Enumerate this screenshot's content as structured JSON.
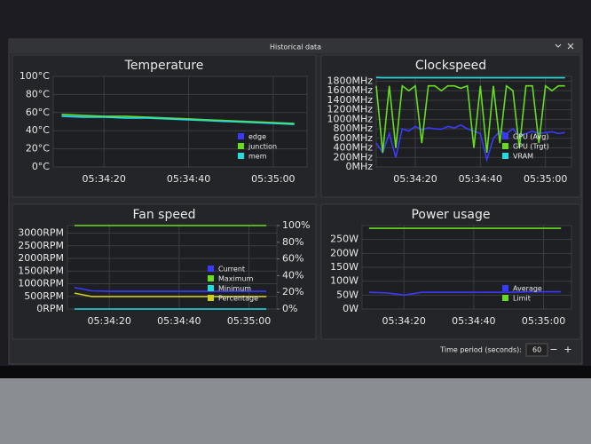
{
  "window": {
    "title": "Historical data"
  },
  "footer": {
    "label": "Time period (seconds):",
    "input": "60",
    "minus": "−",
    "plus": "+"
  },
  "chart_data": [
    {
      "type": "line",
      "title": "Temperature",
      "grid": true,
      "legend": "lower right",
      "x": [
        "05:34:10",
        "05:34:15",
        "05:34:20",
        "05:34:25",
        "05:34:30",
        "05:34:35",
        "05:34:40",
        "05:34:45",
        "05:34:50",
        "05:34:55",
        "05:35:00",
        "05:35:05"
      ],
      "xlim": [
        "05:34:08",
        "05:35:08"
      ],
      "xticks": [
        "05:34:20",
        "05:34:40",
        "05:35:00"
      ],
      "ylim": [
        0,
        100
      ],
      "yticks": [
        {
          "value": 0,
          "label": "0°C"
        },
        {
          "value": 20,
          "label": "20°C"
        },
        {
          "value": 40,
          "label": "40°C"
        },
        {
          "value": 60,
          "label": "60°C"
        },
        {
          "value": 80,
          "label": "80°C"
        },
        {
          "value": 100,
          "label": "100°C"
        }
      ],
      "series": [
        {
          "name": "edge",
          "color": "#3a3aff",
          "values": [
            57,
            56,
            56,
            55,
            55,
            54,
            53,
            52,
            51,
            50,
            49,
            48
          ]
        },
        {
          "name": "junction",
          "color": "#66dd22",
          "values": [
            58,
            57,
            56,
            56,
            55,
            54,
            53,
            52,
            51,
            50,
            49,
            48
          ]
        },
        {
          "name": "mem",
          "color": "#22dddd",
          "values": [
            56,
            55,
            55,
            54,
            54,
            53,
            52,
            51,
            50,
            49,
            48,
            47
          ]
        }
      ]
    },
    {
      "type": "line",
      "title": "Clockspeed",
      "grid": true,
      "legend": "lower right",
      "x": [
        "05:34:08",
        "05:34:10",
        "05:34:12",
        "05:34:14",
        "05:34:16",
        "05:34:18",
        "05:34:20",
        "05:34:22",
        "05:34:24",
        "05:34:26",
        "05:34:28",
        "05:34:30",
        "05:34:32",
        "05:34:34",
        "05:34:36",
        "05:34:38",
        "05:34:40",
        "05:34:42",
        "05:34:44",
        "05:34:46",
        "05:34:48",
        "05:34:50",
        "05:34:52",
        "05:34:54",
        "05:34:56",
        "05:34:58",
        "05:35:00",
        "05:35:02",
        "05:35:04",
        "05:35:06"
      ],
      "xlim": [
        "05:34:08",
        "05:35:08"
      ],
      "xticks": [
        "05:34:20",
        "05:34:40",
        "05:35:00"
      ],
      "ylim": [
        0,
        1900
      ],
      "yticks": [
        {
          "value": 0,
          "label": "0MHz"
        },
        {
          "value": 200,
          "label": "200MHz"
        },
        {
          "value": 400,
          "label": "400MHz"
        },
        {
          "value": 600,
          "label": "600MHz"
        },
        {
          "value": 800,
          "label": "800MHz"
        },
        {
          "value": 1000,
          "label": "1000MHz"
        },
        {
          "value": 1200,
          "label": "1200MHz"
        },
        {
          "value": 1400,
          "label": "1400MHz"
        },
        {
          "value": 1600,
          "label": "1600MHz"
        },
        {
          "value": 1800,
          "label": "1800MHz"
        }
      ],
      "series": [
        {
          "name": "GPU (Avg)",
          "color": "#3a3aff",
          "values": [
            500,
            300,
            700,
            200,
            800,
            750,
            850,
            780,
            820,
            800,
            790,
            850,
            820,
            880,
            800,
            750,
            700,
            150,
            600,
            750,
            700,
            800,
            650,
            700,
            750,
            700,
            720,
            740,
            700,
            720
          ]
        },
        {
          "name": "GPU (Trgt)",
          "color": "#66dd22",
          "values": [
            1700,
            300,
            1700,
            400,
            1700,
            1600,
            1700,
            500,
            1700,
            1700,
            1600,
            1700,
            1700,
            1650,
            1700,
            400,
            1700,
            300,
            1700,
            500,
            1700,
            1600,
            400,
            1700,
            1700,
            500,
            1700,
            1600,
            1700,
            1700
          ]
        },
        {
          "name": "VRAM",
          "color": "#22dddd",
          "values": [
            1875,
            1870,
            1870,
            1870,
            1870,
            1870,
            1870,
            1870,
            1870,
            1870,
            1870,
            1870,
            1870,
            1870,
            1870,
            1870,
            1870,
            1870,
            1870,
            1870,
            1870,
            1870,
            1870,
            1870,
            1870,
            1870,
            1870,
            1870,
            1870,
            1870
          ]
        }
      ]
    },
    {
      "type": "line",
      "title": "Fan speed",
      "grid": true,
      "legend": "lower right",
      "x": [
        "05:34:10",
        "05:34:15",
        "05:34:20",
        "05:34:25",
        "05:34:30",
        "05:34:35",
        "05:34:40",
        "05:34:45",
        "05:34:50",
        "05:34:55",
        "05:35:00",
        "05:35:05"
      ],
      "xlim": [
        "05:34:08",
        "05:35:08"
      ],
      "xticks": [
        "05:34:20",
        "05:34:40",
        "05:35:00"
      ],
      "ylim": [
        0,
        3300
      ],
      "yticks": [
        {
          "value": 0,
          "label": "0RPM"
        },
        {
          "value": 500,
          "label": "500RPM"
        },
        {
          "value": 1000,
          "label": "1000RPM"
        },
        {
          "value": 1500,
          "label": "1500RPM"
        },
        {
          "value": 2000,
          "label": "2000RPM"
        },
        {
          "value": 2500,
          "label": "2500RPM"
        },
        {
          "value": 3000,
          "label": "3000RPM"
        }
      ],
      "y2lim": [
        0,
        100
      ],
      "y2ticks": [
        {
          "value": 0,
          "label": "0%"
        },
        {
          "value": 20,
          "label": "20%"
        },
        {
          "value": 40,
          "label": "40%"
        },
        {
          "value": 60,
          "label": "60%"
        },
        {
          "value": 80,
          "label": "80%"
        },
        {
          "value": 100,
          "label": "100%"
        }
      ],
      "series": [
        {
          "name": "Current",
          "color": "#3a3aff",
          "values": [
            850,
            720,
            700,
            700,
            700,
            700,
            700,
            700,
            700,
            700,
            700,
            700
          ]
        },
        {
          "name": "Maximum",
          "color": "#66dd22",
          "axis": "y2",
          "values": [
            100,
            100,
            100,
            100,
            100,
            100,
            100,
            100,
            100,
            100,
            100,
            100
          ]
        },
        {
          "name": "Minimum",
          "color": "#22dddd",
          "axis": "y2",
          "values": [
            0,
            0,
            0,
            0,
            0,
            0,
            0,
            0,
            0,
            0,
            0,
            0
          ]
        },
        {
          "name": "Percentage",
          "color": "#cccc22",
          "axis": "y2",
          "values": [
            19,
            15,
            15,
            15,
            15,
            15,
            15,
            15,
            15,
            15,
            15,
            15
          ]
        }
      ]
    },
    {
      "type": "line",
      "title": "Power usage",
      "grid": true,
      "legend": "lower right",
      "x": [
        "05:34:10",
        "05:34:15",
        "05:34:20",
        "05:34:25",
        "05:34:30",
        "05:34:35",
        "05:34:40",
        "05:34:45",
        "05:34:50",
        "05:34:55",
        "05:35:00",
        "05:35:05"
      ],
      "xlim": [
        "05:34:08",
        "05:35:08"
      ],
      "xticks": [
        "05:34:20",
        "05:34:40",
        "05:35:00"
      ],
      "ylim": [
        0,
        300
      ],
      "yticks": [
        {
          "value": 0,
          "label": "0W"
        },
        {
          "value": 50,
          "label": "50W"
        },
        {
          "value": 100,
          "label": "100W"
        },
        {
          "value": 150,
          "label": "150W"
        },
        {
          "value": 200,
          "label": "200W"
        },
        {
          "value": 250,
          "label": "250W"
        }
      ],
      "series": [
        {
          "name": "Average",
          "color": "#3a3aff",
          "values": [
            60,
            58,
            50,
            60,
            60,
            60,
            60,
            60,
            60,
            62,
            62,
            62
          ]
        },
        {
          "name": "Limit",
          "color": "#66dd22",
          "values": [
            290,
            290,
            290,
            290,
            290,
            290,
            290,
            290,
            290,
            290,
            290,
            290
          ]
        }
      ]
    }
  ]
}
